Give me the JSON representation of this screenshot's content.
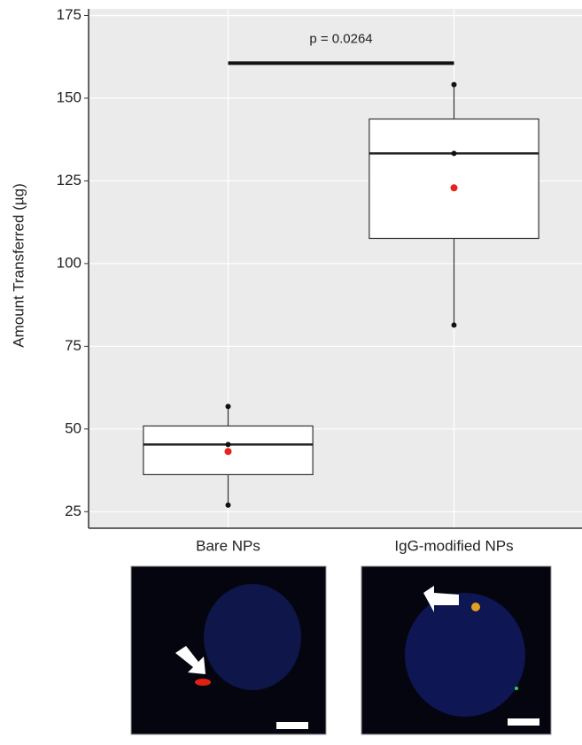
{
  "chart_data": {
    "type": "box",
    "y_label": "Amount Transferred (µg)",
    "categories": [
      "Bare NPs",
      "IgG-modified NPs"
    ],
    "series": [
      {
        "min": 27,
        "q1": 36.2,
        "median": 45.3,
        "q3": 50.9,
        "max": 56.8,
        "mean": 43.2,
        "points": [
          56.8,
          45.3,
          27
        ]
      },
      {
        "min": 81.4,
        "q1": 107.6,
        "median": 133.3,
        "q3": 143.7,
        "max": 154.1,
        "mean": 122.9,
        "points": [
          154.1,
          133.3,
          81.4
        ]
      }
    ],
    "mean_color": "#e8231e",
    "annotation": "p = 0.0264",
    "bracket_y": 160.6,
    "ylim": [
      20,
      177
    ],
    "yticks": [
      25,
      50,
      75,
      100,
      125,
      150,
      175
    ],
    "grid": true
  }
}
